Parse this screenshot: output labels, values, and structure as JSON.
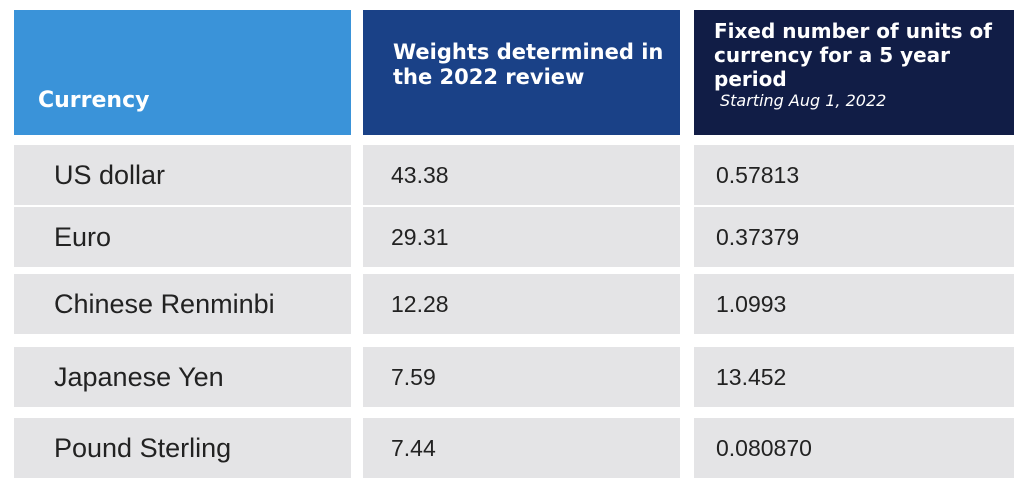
{
  "headers": {
    "currency": "Currency",
    "weights": "Weights determined in the 2022 review",
    "units": "Fixed number of units of currency for a 5 year period",
    "units_sub": "Starting Aug 1, 2022"
  },
  "rows": [
    {
      "currency": "US dollar",
      "weight": "43.38",
      "units": "0.57813"
    },
    {
      "currency": "Euro",
      "weight": "29.31",
      "units": "0.37379"
    },
    {
      "currency": "Chinese Renminbi",
      "weight": "12.28",
      "units": "1.0993"
    },
    {
      "currency": "Japanese Yen",
      "weight": "7.59",
      "units": "13.452"
    },
    {
      "currency": "Pound Sterling",
      "weight": "7.44",
      "units": "0.080870"
    }
  ],
  "colors": {
    "header_currency": "#3a93d9",
    "header_weights": "#1a4187",
    "header_units": "#111d46",
    "row_background": "#e4e4e6"
  }
}
